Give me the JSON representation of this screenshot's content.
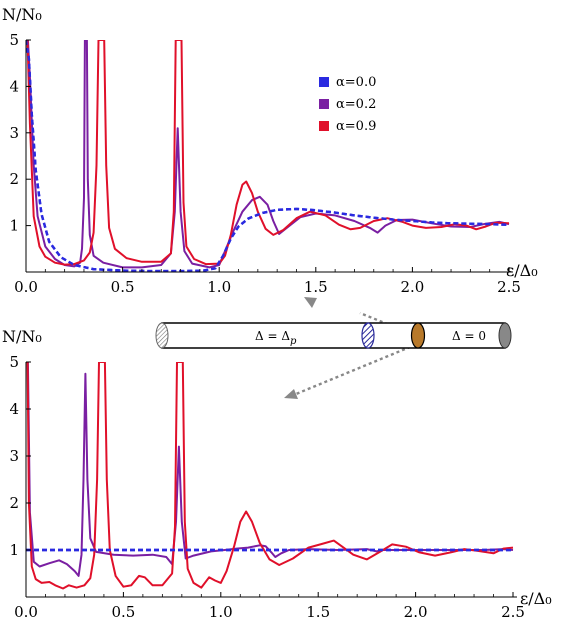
{
  "chart_data": [
    {
      "type": "line",
      "ylabel": "N/N₀",
      "xlabel": "ε/Δ₀",
      "xlim": [
        0,
        2.5
      ],
      "ylim": [
        0,
        5
      ],
      "x_ticks": [
        "0.0",
        "0.5",
        "1.0",
        "1.5",
        "2.0",
        "2.5"
      ],
      "y_ticks": [
        "1",
        "2",
        "3",
        "4",
        "5"
      ],
      "legend": {
        "position": "top-right",
        "entries": [
          "α=0.0",
          "α=0.2",
          "α=0.9"
        ]
      },
      "series": [
        {
          "name": "α=0.0",
          "color": "#2a2ae0",
          "dashed": true,
          "points": [
            [
              0.0,
              5
            ],
            [
              0.015,
              4.6
            ],
            [
              0.03,
              3.4
            ],
            [
              0.05,
              2.2
            ],
            [
              0.08,
              1.25
            ],
            [
              0.12,
              0.65
            ],
            [
              0.18,
              0.32
            ],
            [
              0.25,
              0.15
            ],
            [
              0.35,
              0.06
            ],
            [
              0.5,
              0.03
            ],
            [
              0.65,
              0.02
            ],
            [
              0.8,
              0.02
            ],
            [
              0.92,
              0.03
            ],
            [
              0.98,
              0.08
            ],
            [
              1.02,
              0.35
            ],
            [
              1.06,
              0.72
            ],
            [
              1.1,
              0.98
            ],
            [
              1.15,
              1.15
            ],
            [
              1.22,
              1.27
            ],
            [
              1.3,
              1.34
            ],
            [
              1.4,
              1.36
            ],
            [
              1.5,
              1.33
            ],
            [
              1.6,
              1.28
            ],
            [
              1.7,
              1.22
            ],
            [
              1.8,
              1.17
            ],
            [
              1.9,
              1.13
            ],
            [
              2.0,
              1.1
            ],
            [
              2.1,
              1.07
            ],
            [
              2.2,
              1.05
            ],
            [
              2.3,
              1.04
            ],
            [
              2.4,
              1.03
            ],
            [
              2.5,
              1.02
            ]
          ]
        },
        {
          "name": "α=0.2",
          "color": "#7a1fa2",
          "dashed": false,
          "points": [
            [
              0.0,
              5
            ],
            [
              0.01,
              5
            ],
            [
              0.02,
              4.2
            ],
            [
              0.04,
              2.3
            ],
            [
              0.06,
              1.2
            ],
            [
              0.1,
              0.55
            ],
            [
              0.15,
              0.28
            ],
            [
              0.2,
              0.15
            ],
            [
              0.25,
              0.12
            ],
            [
              0.28,
              0.2
            ],
            [
              0.29,
              0.5
            ],
            [
              0.3,
              1.6
            ],
            [
              0.305,
              5
            ],
            [
              0.315,
              5
            ],
            [
              0.32,
              2.0
            ],
            [
              0.33,
              0.8
            ],
            [
              0.35,
              0.35
            ],
            [
              0.4,
              0.2
            ],
            [
              0.5,
              0.1
            ],
            [
              0.6,
              0.1
            ],
            [
              0.7,
              0.15
            ],
            [
              0.75,
              0.4
            ],
            [
              0.77,
              1.3
            ],
            [
              0.785,
              3.1
            ],
            [
              0.8,
              1.3
            ],
            [
              0.82,
              0.45
            ],
            [
              0.86,
              0.18
            ],
            [
              0.95,
              0.1
            ],
            [
              1.0,
              0.15
            ],
            [
              1.03,
              0.45
            ],
            [
              1.07,
              0.85
            ],
            [
              1.12,
              1.3
            ],
            [
              1.17,
              1.55
            ],
            [
              1.21,
              1.62
            ],
            [
              1.25,
              1.45
            ],
            [
              1.28,
              1.1
            ],
            [
              1.31,
              0.82
            ],
            [
              1.35,
              0.95
            ],
            [
              1.42,
              1.18
            ],
            [
              1.5,
              1.26
            ],
            [
              1.6,
              1.22
            ],
            [
              1.7,
              1.1
            ],
            [
              1.78,
              0.95
            ],
            [
              1.82,
              0.85
            ],
            [
              1.86,
              1.0
            ],
            [
              1.92,
              1.12
            ],
            [
              2.0,
              1.13
            ],
            [
              2.1,
              1.05
            ],
            [
              2.2,
              0.98
            ],
            [
              2.3,
              0.97
            ],
            [
              2.38,
              1.04
            ],
            [
              2.45,
              1.08
            ],
            [
              2.5,
              1.03
            ]
          ]
        },
        {
          "name": "α=0.9",
          "color": "#e0102a",
          "dashed": false,
          "points": [
            [
              0.0,
              5
            ],
            [
              0.008,
              5
            ],
            [
              0.02,
              3.2
            ],
            [
              0.04,
              1.2
            ],
            [
              0.07,
              0.55
            ],
            [
              0.1,
              0.33
            ],
            [
              0.15,
              0.2
            ],
            [
              0.2,
              0.16
            ],
            [
              0.25,
              0.17
            ],
            [
              0.3,
              0.25
            ],
            [
              0.33,
              0.42
            ],
            [
              0.35,
              0.85
            ],
            [
              0.365,
              2.3
            ],
            [
              0.375,
              5
            ],
            [
              0.405,
              5
            ],
            [
              0.415,
              2.3
            ],
            [
              0.43,
              0.95
            ],
            [
              0.46,
              0.5
            ],
            [
              0.52,
              0.3
            ],
            [
              0.6,
              0.22
            ],
            [
              0.7,
              0.22
            ],
            [
              0.75,
              0.4
            ],
            [
              0.765,
              1.3
            ],
            [
              0.775,
              5
            ],
            [
              0.805,
              5
            ],
            [
              0.815,
              1.5
            ],
            [
              0.83,
              0.55
            ],
            [
              0.87,
              0.28
            ],
            [
              0.93,
              0.17
            ],
            [
              1.0,
              0.18
            ],
            [
              1.03,
              0.35
            ],
            [
              1.06,
              0.8
            ],
            [
              1.09,
              1.45
            ],
            [
              1.12,
              1.88
            ],
            [
              1.14,
              1.95
            ],
            [
              1.17,
              1.7
            ],
            [
              1.2,
              1.3
            ],
            [
              1.24,
              0.93
            ],
            [
              1.28,
              0.8
            ],
            [
              1.33,
              0.9
            ],
            [
              1.4,
              1.16
            ],
            [
              1.47,
              1.3
            ],
            [
              1.55,
              1.22
            ],
            [
              1.62,
              1.02
            ],
            [
              1.68,
              0.92
            ],
            [
              1.73,
              0.95
            ],
            [
              1.8,
              1.1
            ],
            [
              1.87,
              1.16
            ],
            [
              1.95,
              1.08
            ],
            [
              2.0,
              1.0
            ],
            [
              2.07,
              0.95
            ],
            [
              2.15,
              0.97
            ],
            [
              2.22,
              1.03
            ],
            [
              2.28,
              1.0
            ],
            [
              2.33,
              0.92
            ],
            [
              2.38,
              0.98
            ],
            [
              2.43,
              1.06
            ],
            [
              2.5,
              1.05
            ]
          ]
        }
      ]
    },
    {
      "type": "line",
      "ylabel": "N/N₀",
      "xlabel": "ε/Δ₀",
      "xlim": [
        0,
        2.5
      ],
      "ylim": [
        0,
        5
      ],
      "x_ticks": [
        "0.0",
        "0.5",
        "1.0",
        "1.5",
        "2.0",
        "2.5"
      ],
      "y_ticks": [
        "1",
        "2",
        "3",
        "4",
        "5"
      ],
      "series": [
        {
          "name": "α=0.0",
          "color": "#2a2ae0",
          "dashed": true,
          "points": [
            [
              0.0,
              1.0
            ],
            [
              2.5,
              1.0
            ]
          ]
        },
        {
          "name": "α=0.2",
          "color": "#7a1fa2",
          "dashed": false,
          "points": [
            [
              0.0,
              5
            ],
            [
              0.01,
              5
            ],
            [
              0.02,
              1.8
            ],
            [
              0.04,
              0.75
            ],
            [
              0.07,
              0.65
            ],
            [
              0.12,
              0.72
            ],
            [
              0.17,
              0.78
            ],
            [
              0.21,
              0.7
            ],
            [
              0.25,
              0.55
            ],
            [
              0.27,
              0.45
            ],
            [
              0.285,
              0.9
            ],
            [
              0.295,
              2.5
            ],
            [
              0.305,
              4.75
            ],
            [
              0.315,
              2.5
            ],
            [
              0.33,
              1.25
            ],
            [
              0.36,
              0.96
            ],
            [
              0.45,
              0.9
            ],
            [
              0.55,
              0.88
            ],
            [
              0.65,
              0.9
            ],
            [
              0.72,
              0.85
            ],
            [
              0.75,
              0.7
            ],
            [
              0.77,
              1.6
            ],
            [
              0.785,
              3.2
            ],
            [
              0.8,
              1.6
            ],
            [
              0.82,
              0.82
            ],
            [
              0.86,
              0.88
            ],
            [
              0.95,
              0.97
            ],
            [
              1.02,
              1.0
            ],
            [
              1.08,
              1.03
            ],
            [
              1.14,
              1.05
            ],
            [
              1.2,
              1.1
            ],
            [
              1.23,
              1.08
            ],
            [
              1.26,
              0.95
            ],
            [
              1.28,
              0.85
            ],
            [
              1.31,
              0.93
            ],
            [
              1.35,
              1.0
            ],
            [
              1.45,
              1.02
            ],
            [
              1.6,
              1.0
            ],
            [
              1.75,
              1.02
            ],
            [
              1.8,
              0.97
            ],
            [
              1.83,
              1.0
            ],
            [
              1.9,
              1.0
            ],
            [
              2.0,
              1.0
            ],
            [
              2.2,
              1.0
            ],
            [
              2.35,
              1.0
            ],
            [
              2.45,
              1.02
            ],
            [
              2.5,
              1.0
            ]
          ]
        },
        {
          "name": "α=0.9",
          "color": "#e0102a",
          "dashed": false,
          "points": [
            [
              0.0,
              5
            ],
            [
              0.008,
              5
            ],
            [
              0.015,
              2.0
            ],
            [
              0.03,
              0.65
            ],
            [
              0.05,
              0.38
            ],
            [
              0.08,
              0.3
            ],
            [
              0.12,
              0.32
            ],
            [
              0.15,
              0.25
            ],
            [
              0.19,
              0.18
            ],
            [
              0.22,
              0.25
            ],
            [
              0.26,
              0.2
            ],
            [
              0.3,
              0.25
            ],
            [
              0.33,
              0.4
            ],
            [
              0.35,
              0.9
            ],
            [
              0.365,
              2.5
            ],
            [
              0.375,
              5
            ],
            [
              0.405,
              5
            ],
            [
              0.415,
              2.5
            ],
            [
              0.43,
              1.0
            ],
            [
              0.46,
              0.45
            ],
            [
              0.5,
              0.22
            ],
            [
              0.54,
              0.25
            ],
            [
              0.58,
              0.45
            ],
            [
              0.61,
              0.42
            ],
            [
              0.65,
              0.25
            ],
            [
              0.7,
              0.25
            ],
            [
              0.75,
              0.5
            ],
            [
              0.765,
              1.5
            ],
            [
              0.775,
              5
            ],
            [
              0.805,
              5
            ],
            [
              0.815,
              1.6
            ],
            [
              0.83,
              0.6
            ],
            [
              0.86,
              0.3
            ],
            [
              0.9,
              0.2
            ],
            [
              0.94,
              0.42
            ],
            [
              0.97,
              0.35
            ],
            [
              1.0,
              0.3
            ],
            [
              1.03,
              0.55
            ],
            [
              1.07,
              1.1
            ],
            [
              1.1,
              1.6
            ],
            [
              1.13,
              1.82
            ],
            [
              1.16,
              1.6
            ],
            [
              1.2,
              1.15
            ],
            [
              1.25,
              0.8
            ],
            [
              1.3,
              0.68
            ],
            [
              1.37,
              0.82
            ],
            [
              1.45,
              1.05
            ],
            [
              1.52,
              1.13
            ],
            [
              1.58,
              1.2
            ],
            [
              1.63,
              1.05
            ],
            [
              1.68,
              0.9
            ],
            [
              1.75,
              0.8
            ],
            [
              1.8,
              0.92
            ],
            [
              1.88,
              1.12
            ],
            [
              1.95,
              1.07
            ],
            [
              2.02,
              0.95
            ],
            [
              2.1,
              0.88
            ],
            [
              2.18,
              0.95
            ],
            [
              2.25,
              1.02
            ],
            [
              2.32,
              0.98
            ],
            [
              2.4,
              0.93
            ],
            [
              2.45,
              1.03
            ],
            [
              2.5,
              1.05
            ]
          ]
        }
      ]
    }
  ],
  "inset": {
    "left_label": "Δ = Δ",
    "left_label_sub": "p",
    "right_label": "Δ = 0"
  }
}
